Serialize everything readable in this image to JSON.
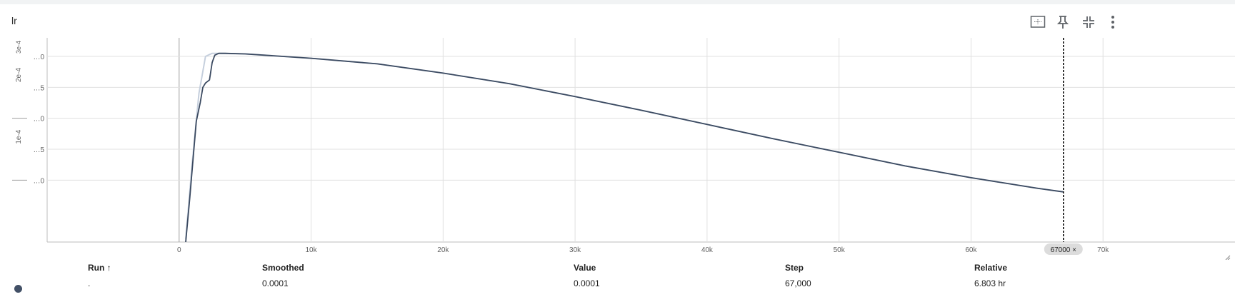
{
  "card": {
    "title": "lr"
  },
  "toolbar": {
    "fit_icon": "fit-to-data-icon",
    "pin_icon": "pin-icon",
    "minimize_icon": "minimize-icon",
    "more_icon": "more-vert-icon"
  },
  "chart_data": {
    "type": "line",
    "xlim": [
      -10000,
      80000
    ],
    "ylim": [
      0,
      0.00033
    ],
    "x_ticks": [
      "0",
      "10k",
      "20k",
      "30k",
      "40k",
      "50k",
      "60k",
      "70k"
    ],
    "x_tick_values": [
      0,
      10000,
      20000,
      30000,
      40000,
      50000,
      60000,
      70000
    ],
    "y_ticks": [
      "…0",
      "…5",
      "…0",
      "…5",
      "…0"
    ],
    "y_tick_values": [
      0.0003,
      0.00025,
      0.0002,
      0.00015,
      0.0001
    ],
    "y_tick_groups": [
      "3e-4",
      "2e-4",
      "1e-4"
    ],
    "grid": true,
    "cursor": {
      "step": 67000,
      "label": "67000 ×"
    },
    "series": [
      {
        "role": "raw",
        "color": "#c5cfdd",
        "x": [
          500,
          1000,
          1500,
          2000,
          2500,
          3000,
          5000,
          10000,
          15000,
          20000,
          25000,
          30000,
          35000,
          40000,
          45000,
          50000,
          55000,
          60000,
          65000,
          67000
        ],
        "y": [
          5e-06,
          0.00013,
          0.00024,
          0.0003,
          0.000305,
          0.000305,
          0.000304,
          0.000297,
          0.000288,
          0.000273,
          0.000256,
          0.000235,
          0.000213,
          0.00019,
          0.000167,
          0.000145,
          0.000123,
          0.000104,
          8.7e-05,
          8.1e-05
        ]
      },
      {
        "role": "smoothed",
        "color": "#3b4a61",
        "x": [
          500,
          800,
          1100,
          1300,
          1600,
          1800,
          2000,
          2300,
          2500,
          2700,
          3000,
          3500,
          5000,
          10000,
          15000,
          20000,
          25000,
          30000,
          35000,
          40000,
          45000,
          50000,
          55000,
          60000,
          65000,
          67000
        ],
        "y": [
          0.0,
          7e-05,
          0.000145,
          0.000195,
          0.000225,
          0.00025,
          0.000257,
          0.000262,
          0.00029,
          0.000302,
          0.000305,
          0.000305,
          0.000304,
          0.000297,
          0.000288,
          0.000273,
          0.000256,
          0.000235,
          0.000213,
          0.00019,
          0.000167,
          0.000145,
          0.000123,
          0.000104,
          8.7e-05,
          8.1e-05
        ]
      }
    ]
  },
  "table": {
    "headers": {
      "run": "Run ↑",
      "smoothed": "Smoothed",
      "value": "Value",
      "step": "Step",
      "relative": "Relative"
    },
    "row": {
      "run": ".",
      "smoothed": "0.0001",
      "value": "0.0001",
      "step": "67,000",
      "relative": "6.803 hr",
      "color": "#425066"
    }
  }
}
